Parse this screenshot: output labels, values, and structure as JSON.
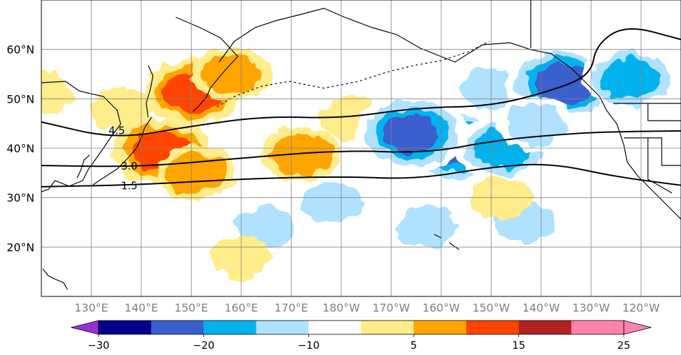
{
  "chart_data": {
    "type": "heatmap",
    "title": "",
    "projection": "map",
    "lat_ticks": [
      60,
      50,
      40,
      30,
      20
    ],
    "lat_tick_labels": [
      "60°N",
      "50°N",
      "40°N",
      "30°N",
      "20°N"
    ],
    "lon_ticks": [
      130,
      140,
      150,
      160,
      170,
      180,
      190,
      200,
      210,
      220,
      230,
      240
    ],
    "lon_tick_labels": [
      "130°E",
      "140°E",
      "150°E",
      "160°E",
      "170°E",
      "180°W",
      "170°W",
      "160°W",
      "150°W",
      "140°W",
      "130°W",
      "120°W"
    ],
    "lon_range": [
      120,
      248
    ],
    "lat_range": [
      10,
      70
    ],
    "grid": true,
    "colorbar": {
      "orientation": "horizontal",
      "position": "bottom",
      "extend": "both",
      "levels": [
        -30,
        -25,
        -20,
        -15,
        -10,
        -5,
        5,
        10,
        15,
        20,
        25
      ],
      "tick_values": [
        -30,
        -20,
        -10,
        5,
        15,
        25
      ],
      "tick_labels": [
        "−30",
        "−20",
        "−10",
        "5",
        "15",
        "25"
      ],
      "colors": [
        "#9b30d0",
        "#00008b",
        "#3a5fcd",
        "#00b2ee",
        "#b0e2ff",
        "#ffffff",
        "#ffec8b",
        "#ffa500",
        "#ff4500",
        "#b22222",
        "#ff82ab"
      ],
      "over_color": "#ff82ab",
      "under_color": "#9b30d0"
    },
    "contours": [
      {
        "label": "1.5",
        "points": [
          [
            120,
            32.2
          ],
          [
            140,
            32.6
          ],
          [
            160,
            33.8
          ],
          [
            180,
            34.3
          ],
          [
            195,
            33.7
          ],
          [
            210,
            36.2
          ],
          [
            222,
            37.0
          ],
          [
            235,
            34.2
          ],
          [
            248,
            32.5
          ]
        ]
      },
      {
        "label": "3.0",
        "points": [
          [
            120,
            36.5
          ],
          [
            140,
            36.2
          ],
          [
            160,
            38.0
          ],
          [
            180,
            39.6
          ],
          [
            197,
            39.0
          ],
          [
            210,
            41.4
          ],
          [
            220,
            42.5
          ],
          [
            232,
            43.3
          ],
          [
            248,
            43.5
          ]
        ]
      },
      {
        "label": "4.5",
        "points": [
          [
            120,
            45.3
          ],
          [
            135,
            41.8
          ],
          [
            150,
            44.5
          ],
          [
            165,
            46.5
          ],
          [
            180,
            46.0
          ],
          [
            195,
            48.2
          ],
          [
            210,
            48.5
          ],
          [
            222,
            51.6
          ],
          [
            230,
            54.8
          ],
          [
            231,
            61.0
          ],
          [
            237,
            65.0
          ],
          [
            248,
            62.0
          ]
        ]
      }
    ],
    "anomaly_regions": [
      {
        "lon": 150.5,
        "lat": 51.5,
        "value": 15
      },
      {
        "lon": 144.0,
        "lat": 39.5,
        "value": 15
      },
      {
        "lon": 158.0,
        "lat": 55.0,
        "value": 10
      },
      {
        "lon": 151.0,
        "lat": 35.0,
        "value": 10
      },
      {
        "lon": 136.0,
        "lat": 48.0,
        "value": 5
      },
      {
        "lon": 172.0,
        "lat": 39.0,
        "value": 10
      },
      {
        "lon": 182.0,
        "lat": 46.0,
        "value": 5
      },
      {
        "lon": 210.0,
        "lat": 52.0,
        "value": -10
      },
      {
        "lon": 224.5,
        "lat": 53.0,
        "value": -20
      },
      {
        "lon": 238.0,
        "lat": 54.0,
        "value": -15
      },
      {
        "lon": 203.0,
        "lat": 40.5,
        "value": -20
      },
      {
        "lon": 212.5,
        "lat": 40.0,
        "value": -15
      },
      {
        "lon": 194.0,
        "lat": 43.0,
        "value": -20
      },
      {
        "lon": 219.0,
        "lat": 45.0,
        "value": -10
      },
      {
        "lon": 197.0,
        "lat": 24.0,
        "value": -10
      },
      {
        "lon": 217.0,
        "lat": 25.0,
        "value": -10
      },
      {
        "lon": 178.0,
        "lat": 29.0,
        "value": -10
      },
      {
        "lon": 165.0,
        "lat": 24.0,
        "value": -10
      },
      {
        "lon": 212.0,
        "lat": 30.0,
        "value": 5
      },
      {
        "lon": 160.0,
        "lat": 18.0,
        "value": 5
      },
      {
        "lon": 120.0,
        "lat": 51.0,
        "value": 5
      }
    ]
  }
}
